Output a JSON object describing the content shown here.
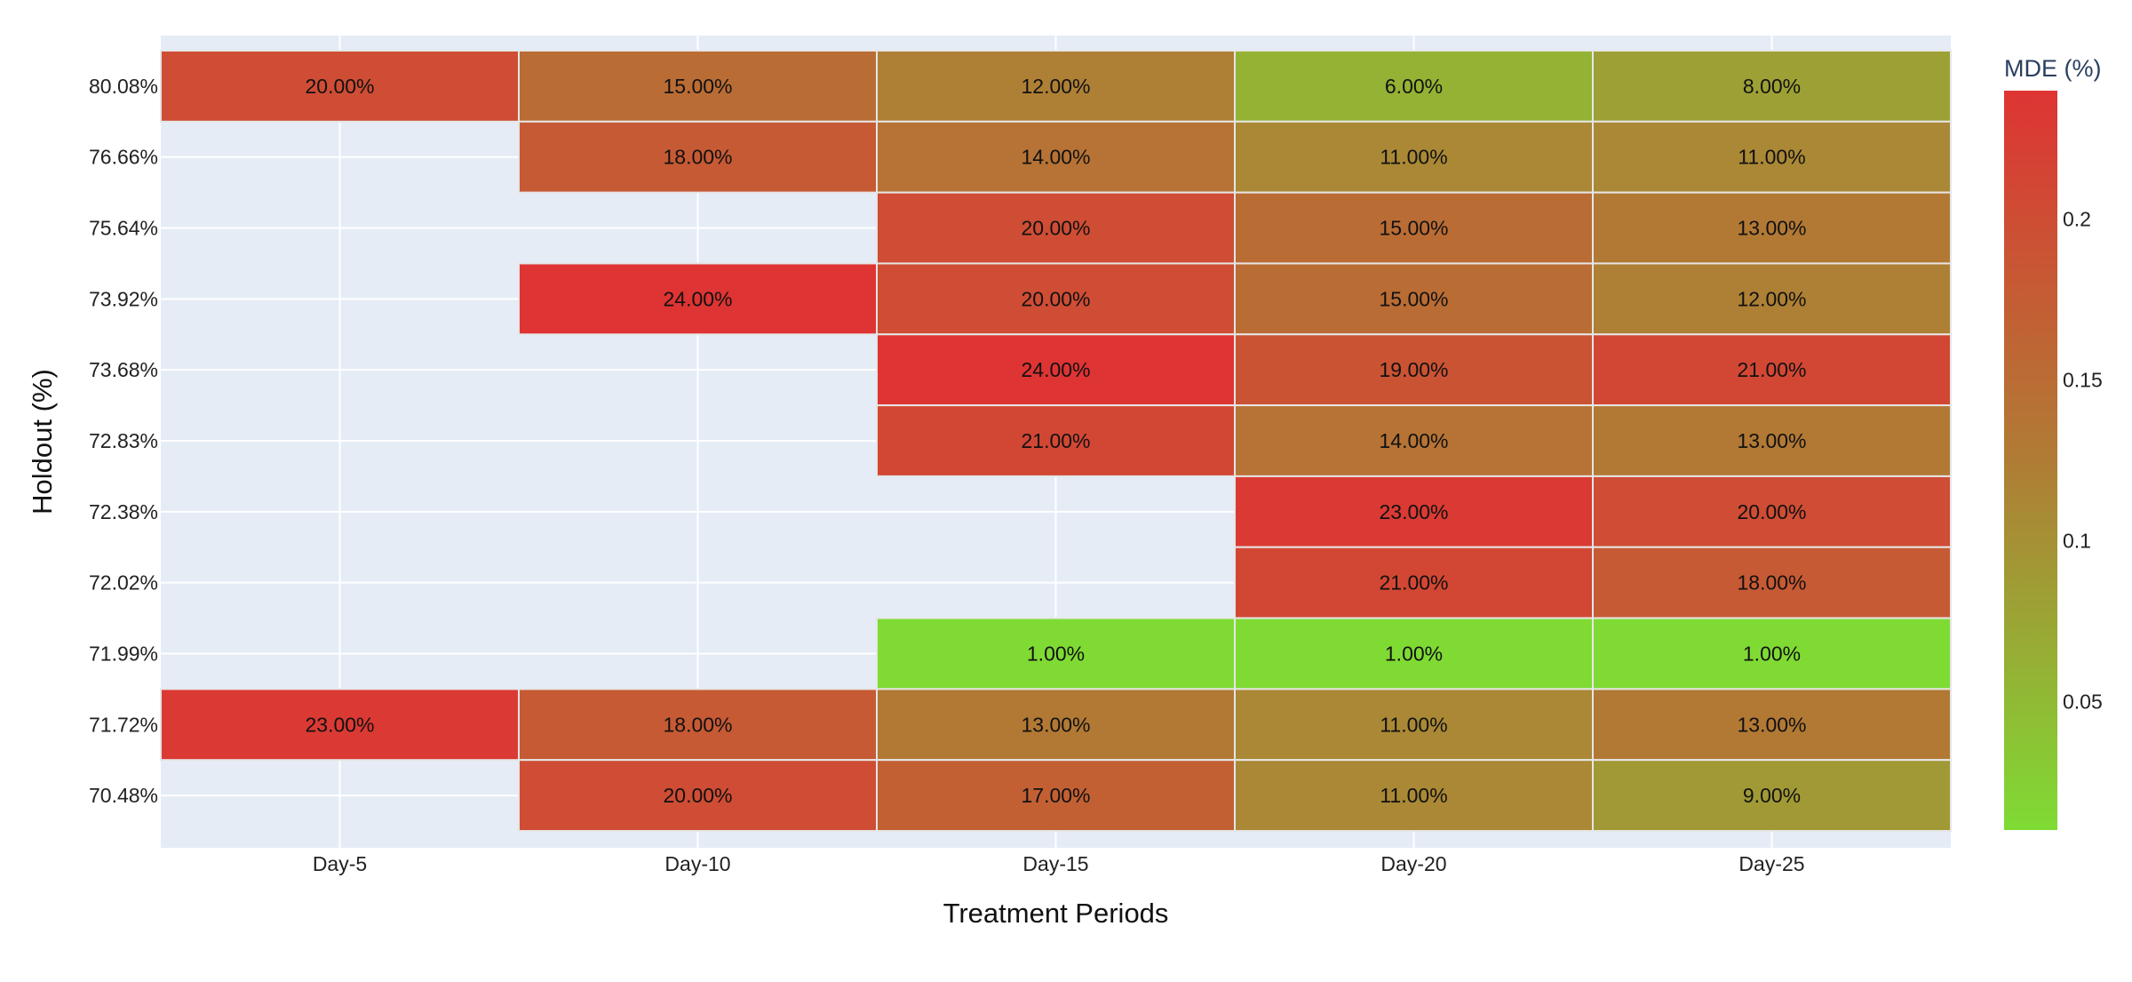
{
  "chart_data": {
    "type": "heatmap",
    "title": "",
    "xlabel": "Treatment Periods",
    "ylabel": "Holdout (%)",
    "x_categories": [
      "Day-5",
      "Day-10",
      "Day-15",
      "Day-20",
      "Day-25"
    ],
    "y_categories": [
      "80.08%",
      "76.66%",
      "75.64%",
      "73.92%",
      "73.68%",
      "72.83%",
      "72.38%",
      "72.02%",
      "71.99%",
      "71.72%",
      "70.48%"
    ],
    "values": [
      [
        0.2,
        0.15,
        0.12,
        0.06,
        0.08
      ],
      [
        null,
        0.18,
        0.14,
        0.11,
        0.11
      ],
      [
        null,
        null,
        0.2,
        0.15,
        0.13
      ],
      [
        null,
        0.24,
        0.2,
        0.15,
        0.12
      ],
      [
        null,
        null,
        0.24,
        0.19,
        0.21
      ],
      [
        null,
        null,
        0.21,
        0.14,
        0.13
      ],
      [
        null,
        null,
        null,
        0.23,
        0.2
      ],
      [
        null,
        null,
        null,
        0.21,
        0.18
      ],
      [
        null,
        null,
        0.01,
        0.01,
        0.01
      ],
      [
        0.23,
        0.18,
        0.13,
        0.11,
        0.13
      ],
      [
        null,
        0.2,
        0.17,
        0.11,
        0.09
      ]
    ],
    "cell_labels": [
      [
        "20.00%",
        "15.00%",
        "12.00%",
        "6.00%",
        "8.00%"
      ],
      [
        "",
        "18.00%",
        "14.00%",
        "11.00%",
        "11.00%"
      ],
      [
        "",
        "",
        "20.00%",
        "15.00%",
        "13.00%"
      ],
      [
        "",
        "24.00%",
        "20.00%",
        "15.00%",
        "12.00%"
      ],
      [
        "",
        "",
        "24.00%",
        "19.00%",
        "21.00%"
      ],
      [
        "",
        "",
        "21.00%",
        "14.00%",
        "13.00%"
      ],
      [
        "",
        "",
        "",
        "23.00%",
        "20.00%"
      ],
      [
        "",
        "",
        "",
        "21.00%",
        "18.00%"
      ],
      [
        "",
        "",
        "1.00%",
        "1.00%",
        "1.00%"
      ],
      [
        "23.00%",
        "18.00%",
        "13.00%",
        "11.00%",
        "13.00%"
      ],
      [
        "",
        "20.00%",
        "17.00%",
        "11.00%",
        "9.00%"
      ]
    ],
    "colorscale": {
      "title": "MDE (%)",
      "min": 0.01,
      "max": 0.24,
      "low_color": "#7fdb34",
      "mid_color": "#b07c35",
      "high_color": "#de3433",
      "ticks": [
        0.05,
        0.1,
        0.15,
        0.2
      ],
      "tick_labels": [
        "0.05",
        "0.1",
        "0.15",
        "0.2"
      ]
    },
    "plot_background": "#e5ecf6",
    "grid": true
  }
}
